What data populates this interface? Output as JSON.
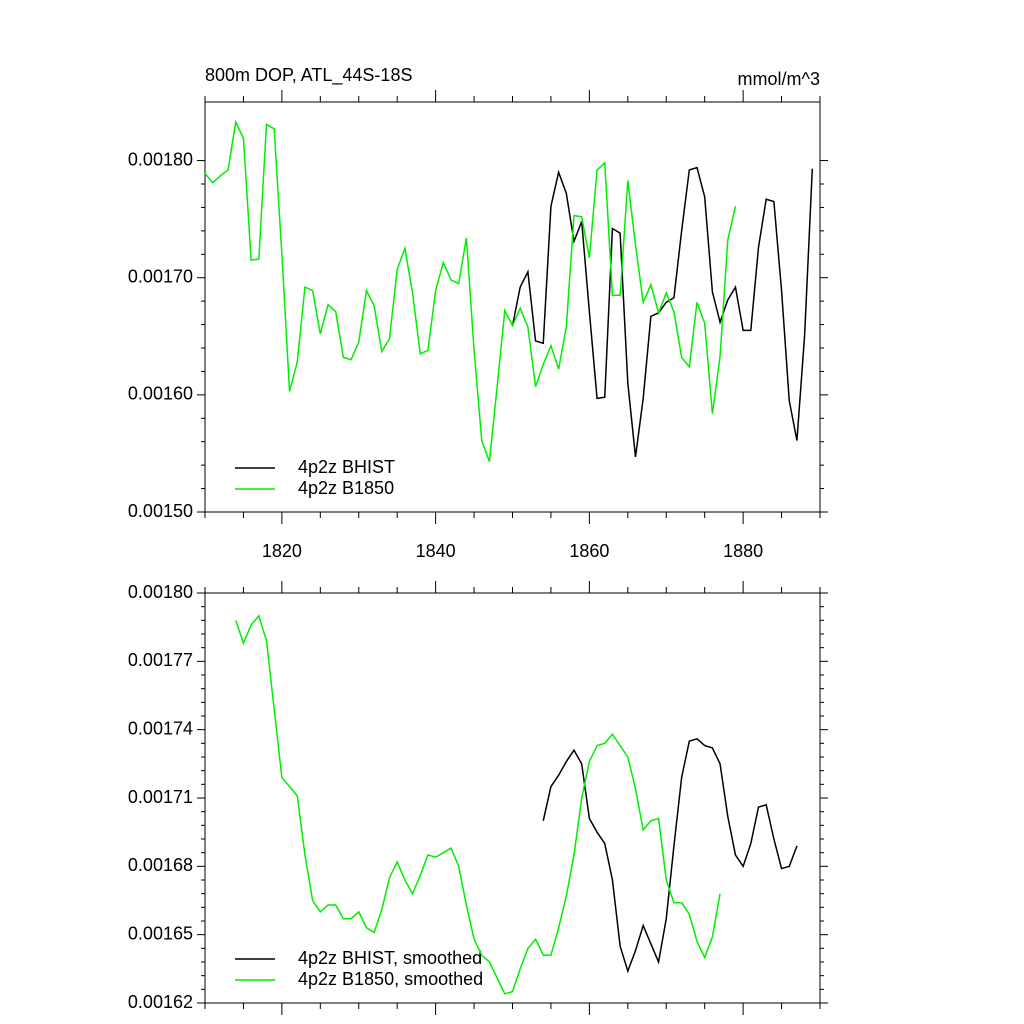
{
  "chart_data": [
    {
      "type": "line",
      "title": "800m DOP, ATL_44S-18S",
      "units": "mmol/m^3",
      "xlim": [
        1810,
        1890
      ],
      "xticks": [
        1820,
        1840,
        1860,
        1880
      ],
      "show_xtick_labels": true,
      "ylim": [
        0.0015,
        0.00185
      ],
      "yticks": [
        {
          "value": 0.0015,
          "label": "0.00150"
        },
        {
          "value": 0.0016,
          "label": "0.00160"
        },
        {
          "value": 0.0017,
          "label": "0.00170"
        },
        {
          "value": 0.0018,
          "label": "0.00180"
        }
      ],
      "series": [
        {
          "name": "4p2z BHIST",
          "color": "#000000",
          "x": [
            1850,
            1851,
            1852,
            1853,
            1854,
            1855,
            1856,
            1857,
            1858,
            1859,
            1860,
            1861,
            1862,
            1863,
            1864,
            1865,
            1866,
            1867,
            1868,
            1869,
            1870,
            1871,
            1872,
            1873,
            1874,
            1875,
            1876,
            1877,
            1878,
            1879,
            1880,
            1881,
            1882,
            1883,
            1884,
            1885,
            1886,
            1887,
            1888,
            1889
          ],
          "values": [
            0.001659,
            0.001692,
            0.001705,
            0.001646,
            0.001644,
            0.001761,
            0.00179,
            0.001772,
            0.001731,
            0.001748,
            0.001671,
            0.001597,
            0.001598,
            0.001742,
            0.001738,
            0.00161,
            0.001547,
            0.001597,
            0.001667,
            0.00167,
            0.001679,
            0.001683,
            0.00174,
            0.001792,
            0.001794,
            0.001769,
            0.001688,
            0.001662,
            0.001681,
            0.001692,
            0.001655,
            0.001655,
            0.001726,
            0.001767,
            0.001765,
            0.001689,
            0.001595,
            0.001561,
            0.001651,
            0.001793
          ]
        },
        {
          "name": "4p2z B1850",
          "color": "#00ee00",
          "x": [
            1810,
            1811,
            1812,
            1813,
            1814,
            1815,
            1816,
            1817,
            1818,
            1819,
            1820,
            1821,
            1822,
            1823,
            1824,
            1825,
            1826,
            1827,
            1828,
            1829,
            1830,
            1831,
            1832,
            1833,
            1834,
            1835,
            1836,
            1837,
            1838,
            1839,
            1840,
            1841,
            1842,
            1843,
            1844,
            1845,
            1846,
            1847,
            1848,
            1849,
            1850,
            1851,
            1852,
            1853,
            1854,
            1855,
            1856,
            1857,
            1858,
            1859,
            1860,
            1861,
            1862,
            1863,
            1864,
            1865,
            1866,
            1867,
            1868,
            1869,
            1870,
            1871,
            1872,
            1873,
            1874,
            1875,
            1876,
            1877,
            1878,
            1879
          ],
          "values": [
            0.001789,
            0.001781,
            0.001787,
            0.001792,
            0.001833,
            0.001819,
            0.001715,
            0.001716,
            0.001831,
            0.001827,
            0.00172,
            0.001603,
            0.001628,
            0.001692,
            0.001689,
            0.001652,
            0.001677,
            0.001671,
            0.001632,
            0.00163,
            0.001645,
            0.001689,
            0.001676,
            0.001637,
            0.001648,
            0.001707,
            0.001725,
            0.001687,
            0.001635,
            0.001638,
            0.001689,
            0.001713,
            0.001698,
            0.001695,
            0.001734,
            0.001638,
            0.001561,
            0.001543,
            0.001607,
            0.001672,
            0.001659,
            0.001674,
            0.001658,
            0.001607,
            0.001626,
            0.001642,
            0.001622,
            0.001658,
            0.001753,
            0.001752,
            0.001717,
            0.001792,
            0.001798,
            0.001685,
            0.001685,
            0.001783,
            0.001728,
            0.001679,
            0.001694,
            0.00167,
            0.001687,
            0.001671,
            0.001632,
            0.001624,
            0.001679,
            0.001661,
            0.001584,
            0.001633,
            0.001732,
            0.001761
          ]
        }
      ]
    },
    {
      "type": "line",
      "xlim": [
        1810,
        1890
      ],
      "xticks": [
        1820,
        1840,
        1860,
        1880
      ],
      "show_xtick_labels": false,
      "ylim": [
        0.00162,
        0.0018
      ],
      "yticks": [
        {
          "value": 0.00162,
          "label": "0.00162"
        },
        {
          "value": 0.00165,
          "label": "0.00165"
        },
        {
          "value": 0.00168,
          "label": "0.00168"
        },
        {
          "value": 0.00171,
          "label": "0.00171"
        },
        {
          "value": 0.00174,
          "label": "0.00174"
        },
        {
          "value": 0.00177,
          "label": "0.00177"
        },
        {
          "value": 0.0018,
          "label": "0.00180"
        }
      ],
      "series": [
        {
          "name": "4p2z BHIST, smoothed",
          "color": "#000000",
          "x": [
            1854,
            1855,
            1856,
            1857,
            1858,
            1859,
            1860,
            1861,
            1862,
            1863,
            1864,
            1865,
            1866,
            1867,
            1868,
            1869,
            1870,
            1871,
            1872,
            1873,
            1874,
            1875,
            1876,
            1877,
            1878,
            1879,
            1880,
            1881,
            1882,
            1883,
            1884,
            1885,
            1886,
            1887
          ],
          "values": [
            0.0017,
            0.001715,
            0.00172,
            0.001726,
            0.001731,
            0.001725,
            0.001701,
            0.001695,
            0.00169,
            0.001674,
            0.001645,
            0.001634,
            0.001643,
            0.001654,
            0.001646,
            0.001638,
            0.001657,
            0.001689,
            0.001719,
            0.001735,
            0.001736,
            0.001733,
            0.001732,
            0.001725,
            0.001702,
            0.001685,
            0.00168,
            0.00169,
            0.001706,
            0.001707,
            0.001692,
            0.001679,
            0.00168,
            0.001689
          ]
        },
        {
          "name": "4p2z B1850, smoothed",
          "color": "#00ee00",
          "x": [
            1814,
            1815,
            1816,
            1817,
            1818,
            1819,
            1820,
            1821,
            1822,
            1823,
            1824,
            1825,
            1826,
            1827,
            1828,
            1829,
            1830,
            1831,
            1832,
            1833,
            1834,
            1835,
            1836,
            1837,
            1838,
            1839,
            1840,
            1841,
            1842,
            1843,
            1844,
            1845,
            1846,
            1847,
            1848,
            1849,
            1850,
            1851,
            1852,
            1853,
            1854,
            1855,
            1856,
            1857,
            1858,
            1859,
            1860,
            1861,
            1862,
            1863,
            1864,
            1865,
            1866,
            1867,
            1868,
            1869,
            1870,
            1871,
            1872,
            1873,
            1874,
            1875,
            1876,
            1877
          ],
          "values": [
            0.001788,
            0.001778,
            0.001786,
            0.00179,
            0.001779,
            0.001749,
            0.001719,
            0.001715,
            0.001711,
            0.001685,
            0.001665,
            0.00166,
            0.001663,
            0.001663,
            0.001657,
            0.001657,
            0.00166,
            0.001653,
            0.001651,
            0.001661,
            0.001675,
            0.001682,
            0.001674,
            0.001668,
            0.001676,
            0.001685,
            0.001684,
            0.001686,
            0.001688,
            0.00168,
            0.001663,
            0.001648,
            0.001641,
            0.001638,
            0.001631,
            0.001624,
            0.001625,
            0.001635,
            0.001644,
            0.001648,
            0.001641,
            0.001641,
            0.001653,
            0.001667,
            0.001685,
            0.00171,
            0.001726,
            0.001733,
            0.001734,
            0.001738,
            0.001733,
            0.001728,
            0.001714,
            0.001696,
            0.0017,
            0.001701,
            0.001674,
            0.001664,
            0.001664,
            0.001659,
            0.001647,
            0.00164,
            0.001649,
            0.001668
          ]
        }
      ]
    }
  ]
}
